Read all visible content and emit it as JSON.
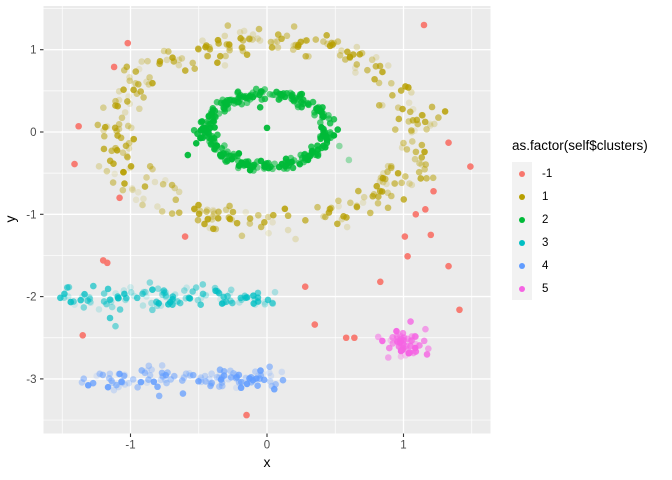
{
  "chart_data": {
    "type": "scatter",
    "title": "",
    "xlabel": "x",
    "ylabel": "y",
    "axes": {
      "x": {
        "label": "x",
        "ticks": [
          -1,
          0,
          1
        ],
        "tick_labels": [
          "-1",
          "0",
          "1"
        ],
        "range": [
          -1.64,
          1.64
        ]
      },
      "y": {
        "label": "y",
        "ticks": [
          -3,
          -2,
          -1,
          0,
          1
        ],
        "tick_labels": [
          "-3",
          "-2",
          "-1",
          "0",
          "1"
        ],
        "range": [
          -3.66,
          1.53
        ]
      }
    },
    "grid": {
      "major": true,
      "minor_x": [
        -1.5,
        -0.5,
        0.5,
        1.5
      ],
      "minor_y": [
        -3.5,
        -2.5,
        -1.5,
        -0.5,
        0.5,
        1.5
      ]
    },
    "legend": {
      "title": "as.factor(self$clusters)",
      "position": "right",
      "entries": [
        {
          "label": "-1",
          "color": "#F8766D"
        },
        {
          "label": "1",
          "color": "#B79F00"
        },
        {
          "label": "2",
          "color": "#00BA38"
        },
        {
          "label": "3",
          "color": "#00BFC4"
        },
        {
          "label": "4",
          "color": "#619CFF"
        },
        {
          "label": "5",
          "color": "#F564E3"
        }
      ]
    },
    "clusters": [
      {
        "id": "1",
        "label": "1",
        "color": "#B79F00",
        "shape": "ring",
        "cx": 0,
        "cy": 0,
        "radius": 1.12,
        "radius_sd": 0.09,
        "n": 330,
        "alpha": [
          0.12,
          0.85
        ]
      },
      {
        "id": "2",
        "label": "2",
        "color": "#00BA38",
        "shape": "ring",
        "cx": 0,
        "cy": 0.02,
        "radius": 0.44,
        "radius_sd": 0.032,
        "n": 300,
        "alpha": [
          0.55,
          1.0
        ]
      },
      {
        "id": "3",
        "label": "3",
        "color": "#00BFC4",
        "shape": "band",
        "x_range": [
          -1.52,
          0.08
        ],
        "cy": -2.02,
        "y_sd": 0.065,
        "x_bias": 1.0,
        "n": 115,
        "alpha": [
          0.12,
          0.85
        ]
      },
      {
        "id": "4",
        "label": "4",
        "color": "#619CFF",
        "shape": "band",
        "x_range": [
          -1.45,
          0.12
        ],
        "cy": -3.0,
        "y_sd": 0.07,
        "x_bias": 0.78,
        "n": 115,
        "alpha": [
          0.12,
          0.9
        ]
      },
      {
        "id": "5",
        "label": "5",
        "color": "#F564E3",
        "shape": "blob",
        "cx": 1.0,
        "cy": -2.56,
        "x_sd": 0.075,
        "y_sd": 0.085,
        "n": 55,
        "alpha": [
          0.25,
          1.0
        ]
      }
    ],
    "extra_points": [
      {
        "x": 0.0,
        "y": 0.05,
        "color": "#00BA38",
        "alpha": 0.95
      },
      {
        "x": -0.05,
        "y": 0.3,
        "color": "#00BA38",
        "alpha": 0.9
      },
      {
        "x": -0.58,
        "y": -0.28,
        "color": "#00BA38",
        "alpha": 0.95
      },
      {
        "x": 0.53,
        "y": -0.17,
        "color": "#00BA38",
        "alpha": 0.4
      },
      {
        "x": 0.6,
        "y": -0.34,
        "color": "#00BA38",
        "alpha": 0.35
      },
      {
        "x": -1.15,
        "y": -2.26,
        "color": "#00BFC4",
        "alpha": 0.7
      },
      {
        "x": -1.11,
        "y": -2.36,
        "color": "#00BFC4",
        "alpha": 0.5
      }
    ],
    "noise": {
      "label": "-1",
      "color": "#F8766D",
      "alpha": 0.95,
      "points": [
        [
          -1.02,
          1.08
        ],
        [
          -1.12,
          0.79
        ],
        [
          1.15,
          1.3
        ],
        [
          -1.38,
          0.07
        ],
        [
          -1.41,
          -0.39
        ],
        [
          -1.08,
          -0.8
        ],
        [
          -1.2,
          -1.56
        ],
        [
          -1.17,
          -1.59
        ],
        [
          1.33,
          -0.13
        ],
        [
          1.49,
          -0.42
        ],
        [
          1.22,
          -0.72
        ],
        [
          1.16,
          -0.94
        ],
        [
          1.09,
          -1.0
        ],
        [
          1.2,
          -1.25
        ],
        [
          1.01,
          -1.27
        ],
        [
          1.03,
          -1.51
        ],
        [
          1.33,
          -1.63
        ],
        [
          1.41,
          -2.16
        ],
        [
          -0.6,
          -1.27
        ],
        [
          0.28,
          -1.88
        ],
        [
          0.83,
          -1.82
        ],
        [
          0.35,
          -2.34
        ],
        [
          0.58,
          -2.5
        ],
        [
          0.64,
          -2.5
        ],
        [
          -1.35,
          -2.47
        ],
        [
          -0.15,
          -3.44
        ]
      ]
    },
    "style": {
      "panel_bg": "#EBEBEB",
      "grid_color": "#FFFFFF",
      "tick_color": "#333333",
      "tick_label_color": "#4D4D4D",
      "axis_title_color": "#000000",
      "legend_key_bg": "#F2F2F2",
      "background": "#FFFFFF",
      "point_radius": 3.3
    }
  }
}
